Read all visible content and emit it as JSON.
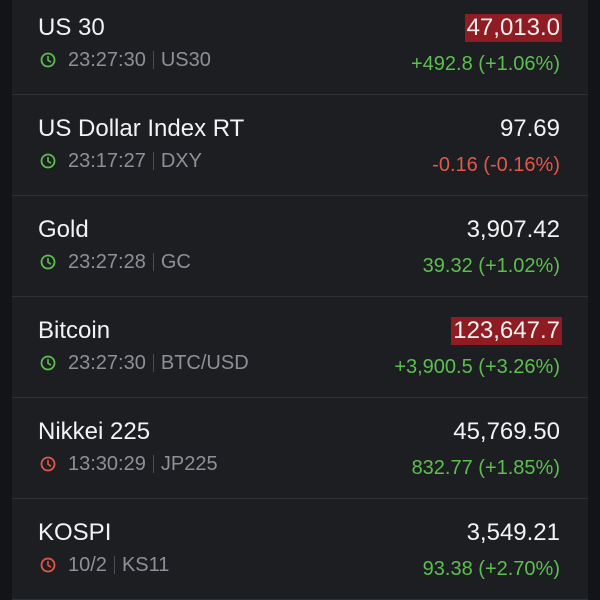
{
  "rows": [
    {
      "name": "US 30",
      "time": "23:27:30",
      "symbol": "US30",
      "price": "47,013.0",
      "change": "+492.8 (+1.06%)",
      "highlighted": true,
      "change_color": "#5cbf4f",
      "clock_color": "#5cbf4f"
    },
    {
      "name": "US Dollar Index RT",
      "time": "23:17:27",
      "symbol": "DXY",
      "price": "97.69",
      "change": "-0.16 (-0.16%)",
      "highlighted": false,
      "change_color": "#e5564a",
      "clock_color": "#5cbf4f"
    },
    {
      "name": "Gold",
      "time": "23:27:28",
      "symbol": "GC",
      "price": "3,907.42",
      "change": "39.32 (+1.02%)",
      "highlighted": false,
      "change_color": "#5cbf4f",
      "clock_color": "#5cbf4f"
    },
    {
      "name": "Bitcoin",
      "time": "23:27:30",
      "symbol": "BTC/USD",
      "price": "123,647.7",
      "change": "+3,900.5 (+3.26%)",
      "highlighted": true,
      "change_color": "#5cbf4f",
      "clock_color": "#5cbf4f"
    },
    {
      "name": "Nikkei 225",
      "time": "13:30:29",
      "symbol": "JP225",
      "price": "45,769.50",
      "change": "832.77 (+1.85%)",
      "highlighted": false,
      "change_color": "#5cbf4f",
      "clock_color": "#e5564a"
    },
    {
      "name": "KOSPI",
      "time": "10/2",
      "symbol": "KS11",
      "price": "3,549.21",
      "change": "93.38 (+2.70%)",
      "highlighted": false,
      "change_color": "#5cbf4f",
      "clock_color": "#e5564a"
    }
  ]
}
